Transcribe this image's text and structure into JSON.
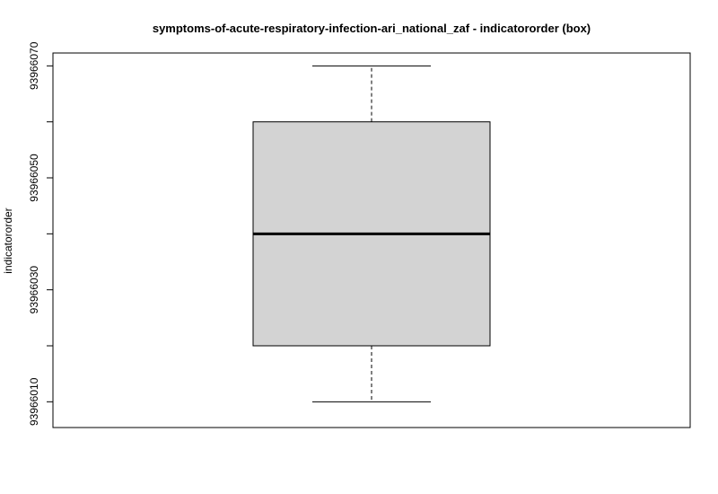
{
  "chart_data": {
    "type": "box",
    "title": "symptoms-of-acute-respiratory-infection-ari_national_zaf - indicatororder (box)",
    "xlabel": "",
    "ylabel": "indicatororder",
    "ylim": [
      93966005.4,
      93966072.3
    ],
    "yticks": [
      93966010,
      93966020,
      93966030,
      93966040,
      93966050,
      93966060,
      93966070
    ],
    "ytick_labels": [
      "93966010",
      "",
      "93966030",
      "",
      "93966050",
      "",
      "93966070"
    ],
    "box": {
      "whisker_low": 93966010,
      "q1": 93966020,
      "median": 93966040,
      "q3": 93966060,
      "whisker_high": 93966070
    },
    "colors": {
      "box_fill": "#d3d3d3",
      "stroke": "#000000"
    },
    "grid": false
  }
}
